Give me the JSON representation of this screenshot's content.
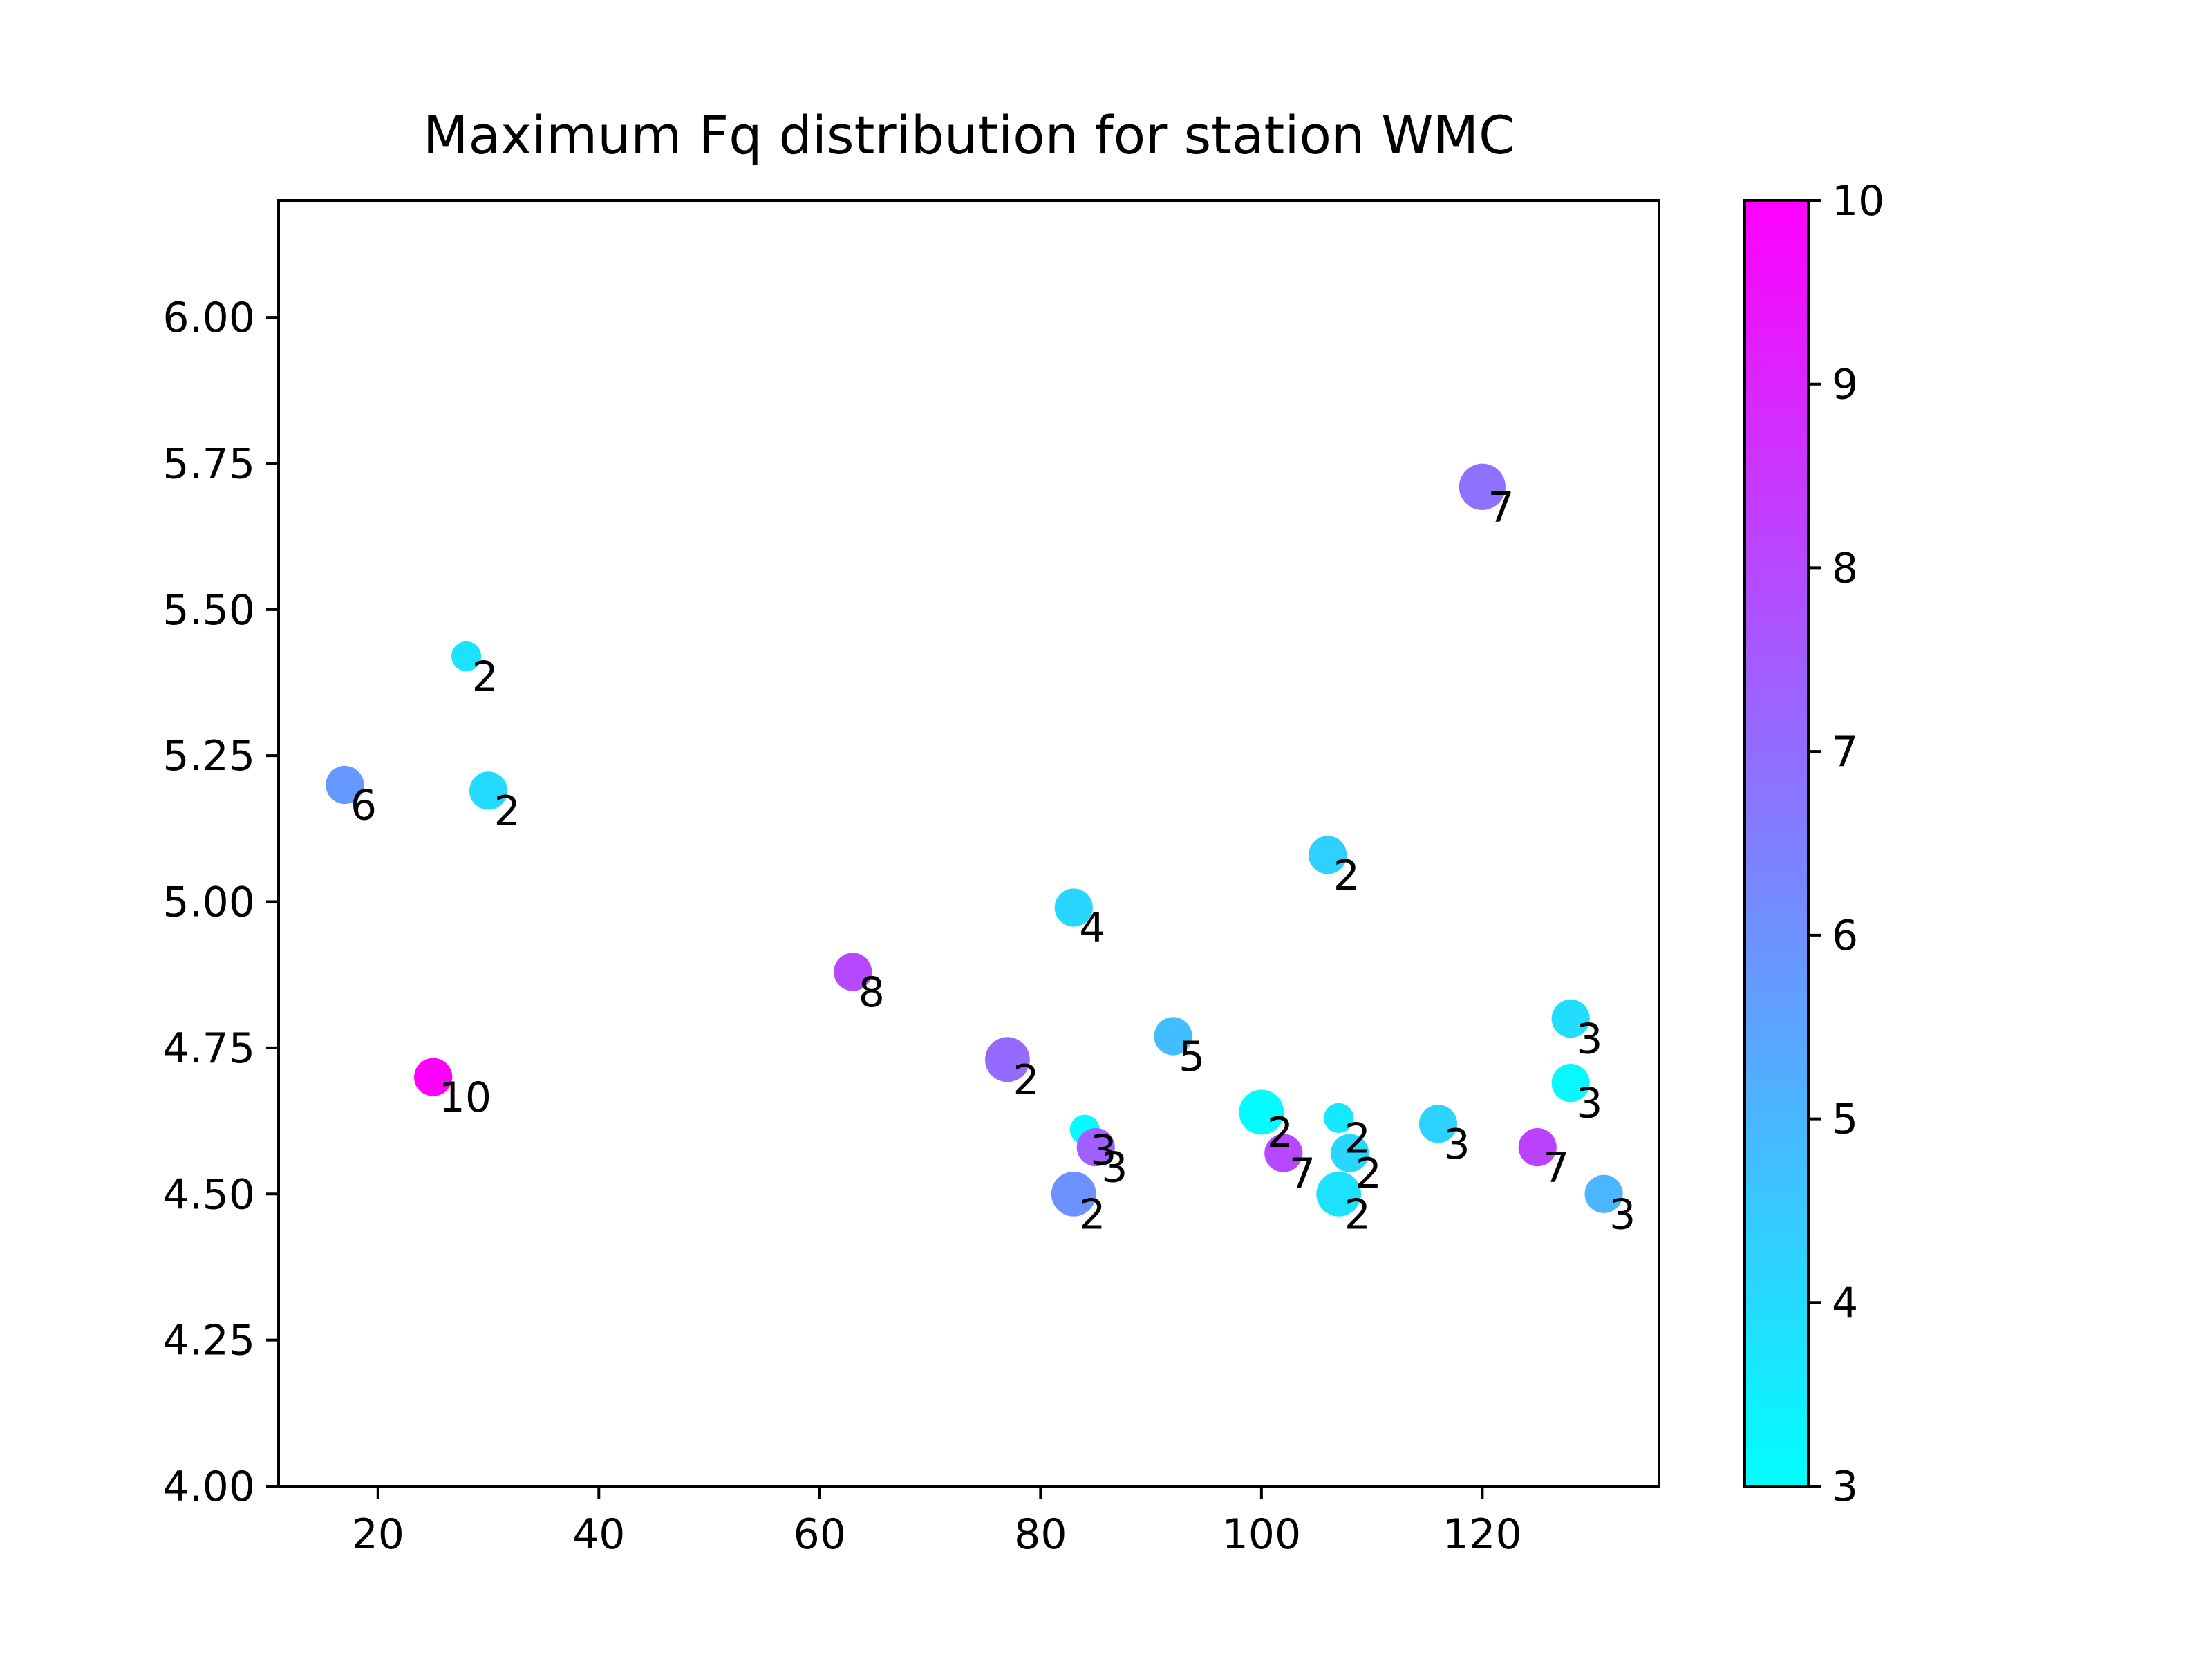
{
  "chart_data": {
    "type": "scatter",
    "title": "Maximum Fq distribution for station WMC",
    "xlabel": "",
    "ylabel": "",
    "xlim": [
      11,
      136
    ],
    "ylim": [
      4.0,
      6.2
    ],
    "xticks": [
      20,
      40,
      60,
      80,
      100,
      120
    ],
    "xtick_labels": [
      "20",
      "40",
      "60",
      "80",
      "100",
      "120"
    ],
    "yticks": [
      4.0,
      4.25,
      4.5,
      4.75,
      5.0,
      5.25,
      5.5,
      5.75,
      6.0
    ],
    "ytick_labels": [
      "4.00",
      "4.25",
      "4.50",
      "4.75",
      "5.00",
      "5.25",
      "5.50",
      "5.75",
      "6.00"
    ],
    "grid": false,
    "colormap": "cool",
    "colormap_stops": [
      "#00ffff",
      "#ff00ff"
    ],
    "colorbar": {
      "min": 3,
      "max": 10,
      "ticks": [
        3,
        4,
        5,
        6,
        7,
        8,
        9,
        10
      ],
      "tick_labels": [
        "3",
        "4",
        "5",
        "6",
        "7",
        "8",
        "9",
        "10"
      ]
    },
    "points": [
      {
        "x": 120,
        "y": 5.71,
        "color_value": 6.9,
        "size": 1.8,
        "label": "7"
      },
      {
        "x": 28,
        "y": 5.42,
        "color_value": 3.8,
        "size": 0.8,
        "label": "2"
      },
      {
        "x": 17,
        "y": 5.2,
        "color_value": 5.8,
        "size": 1.3,
        "label": "6"
      },
      {
        "x": 30,
        "y": 5.19,
        "color_value": 4.0,
        "size": 1.3,
        "label": "2"
      },
      {
        "x": 106,
        "y": 5.08,
        "color_value": 4.3,
        "size": 1.3,
        "label": "2"
      },
      {
        "x": 83,
        "y": 4.99,
        "color_value": 4.1,
        "size": 1.3,
        "label": "4"
      },
      {
        "x": 63,
        "y": 4.88,
        "color_value": 8.0,
        "size": 1.3,
        "label": "8"
      },
      {
        "x": 128,
        "y": 4.8,
        "color_value": 3.9,
        "size": 1.3,
        "label": "3"
      },
      {
        "x": 92,
        "y": 4.77,
        "color_value": 4.8,
        "size": 1.3,
        "label": "5"
      },
      {
        "x": 77,
        "y": 4.73,
        "color_value": 7.1,
        "size": 1.7,
        "label": "2"
      },
      {
        "x": 25,
        "y": 4.7,
        "color_value": 10.0,
        "size": 1.3,
        "label": "10"
      },
      {
        "x": 128,
        "y": 4.69,
        "color_value": 3.2,
        "size": 1.3,
        "label": "3"
      },
      {
        "x": 100,
        "y": 4.64,
        "color_value": 3.1,
        "size": 1.7,
        "label": "2"
      },
      {
        "x": 107,
        "y": 4.63,
        "color_value": 3.6,
        "size": 0.8,
        "label": "2"
      },
      {
        "x": 116,
        "y": 4.62,
        "color_value": 4.2,
        "size": 1.3,
        "label": "3"
      },
      {
        "x": 84,
        "y": 4.61,
        "color_value": 3.1,
        "size": 0.8,
        "label": "3"
      },
      {
        "x": 85,
        "y": 4.58,
        "color_value": 7.4,
        "size": 1.3,
        "label": "3"
      },
      {
        "x": 125,
        "y": 4.58,
        "color_value": 8.2,
        "size": 1.3,
        "label": "7"
      },
      {
        "x": 102,
        "y": 4.57,
        "color_value": 8.0,
        "size": 1.3,
        "label": "7"
      },
      {
        "x": 108,
        "y": 4.57,
        "color_value": 4.1,
        "size": 1.3,
        "label": "2"
      },
      {
        "x": 83,
        "y": 4.5,
        "color_value": 6.0,
        "size": 1.7,
        "label": "2"
      },
      {
        "x": 107,
        "y": 4.5,
        "color_value": 3.8,
        "size": 1.7,
        "label": "2"
      },
      {
        "x": 131,
        "y": 4.5,
        "color_value": 5.0,
        "size": 1.3,
        "label": "3"
      }
    ]
  }
}
